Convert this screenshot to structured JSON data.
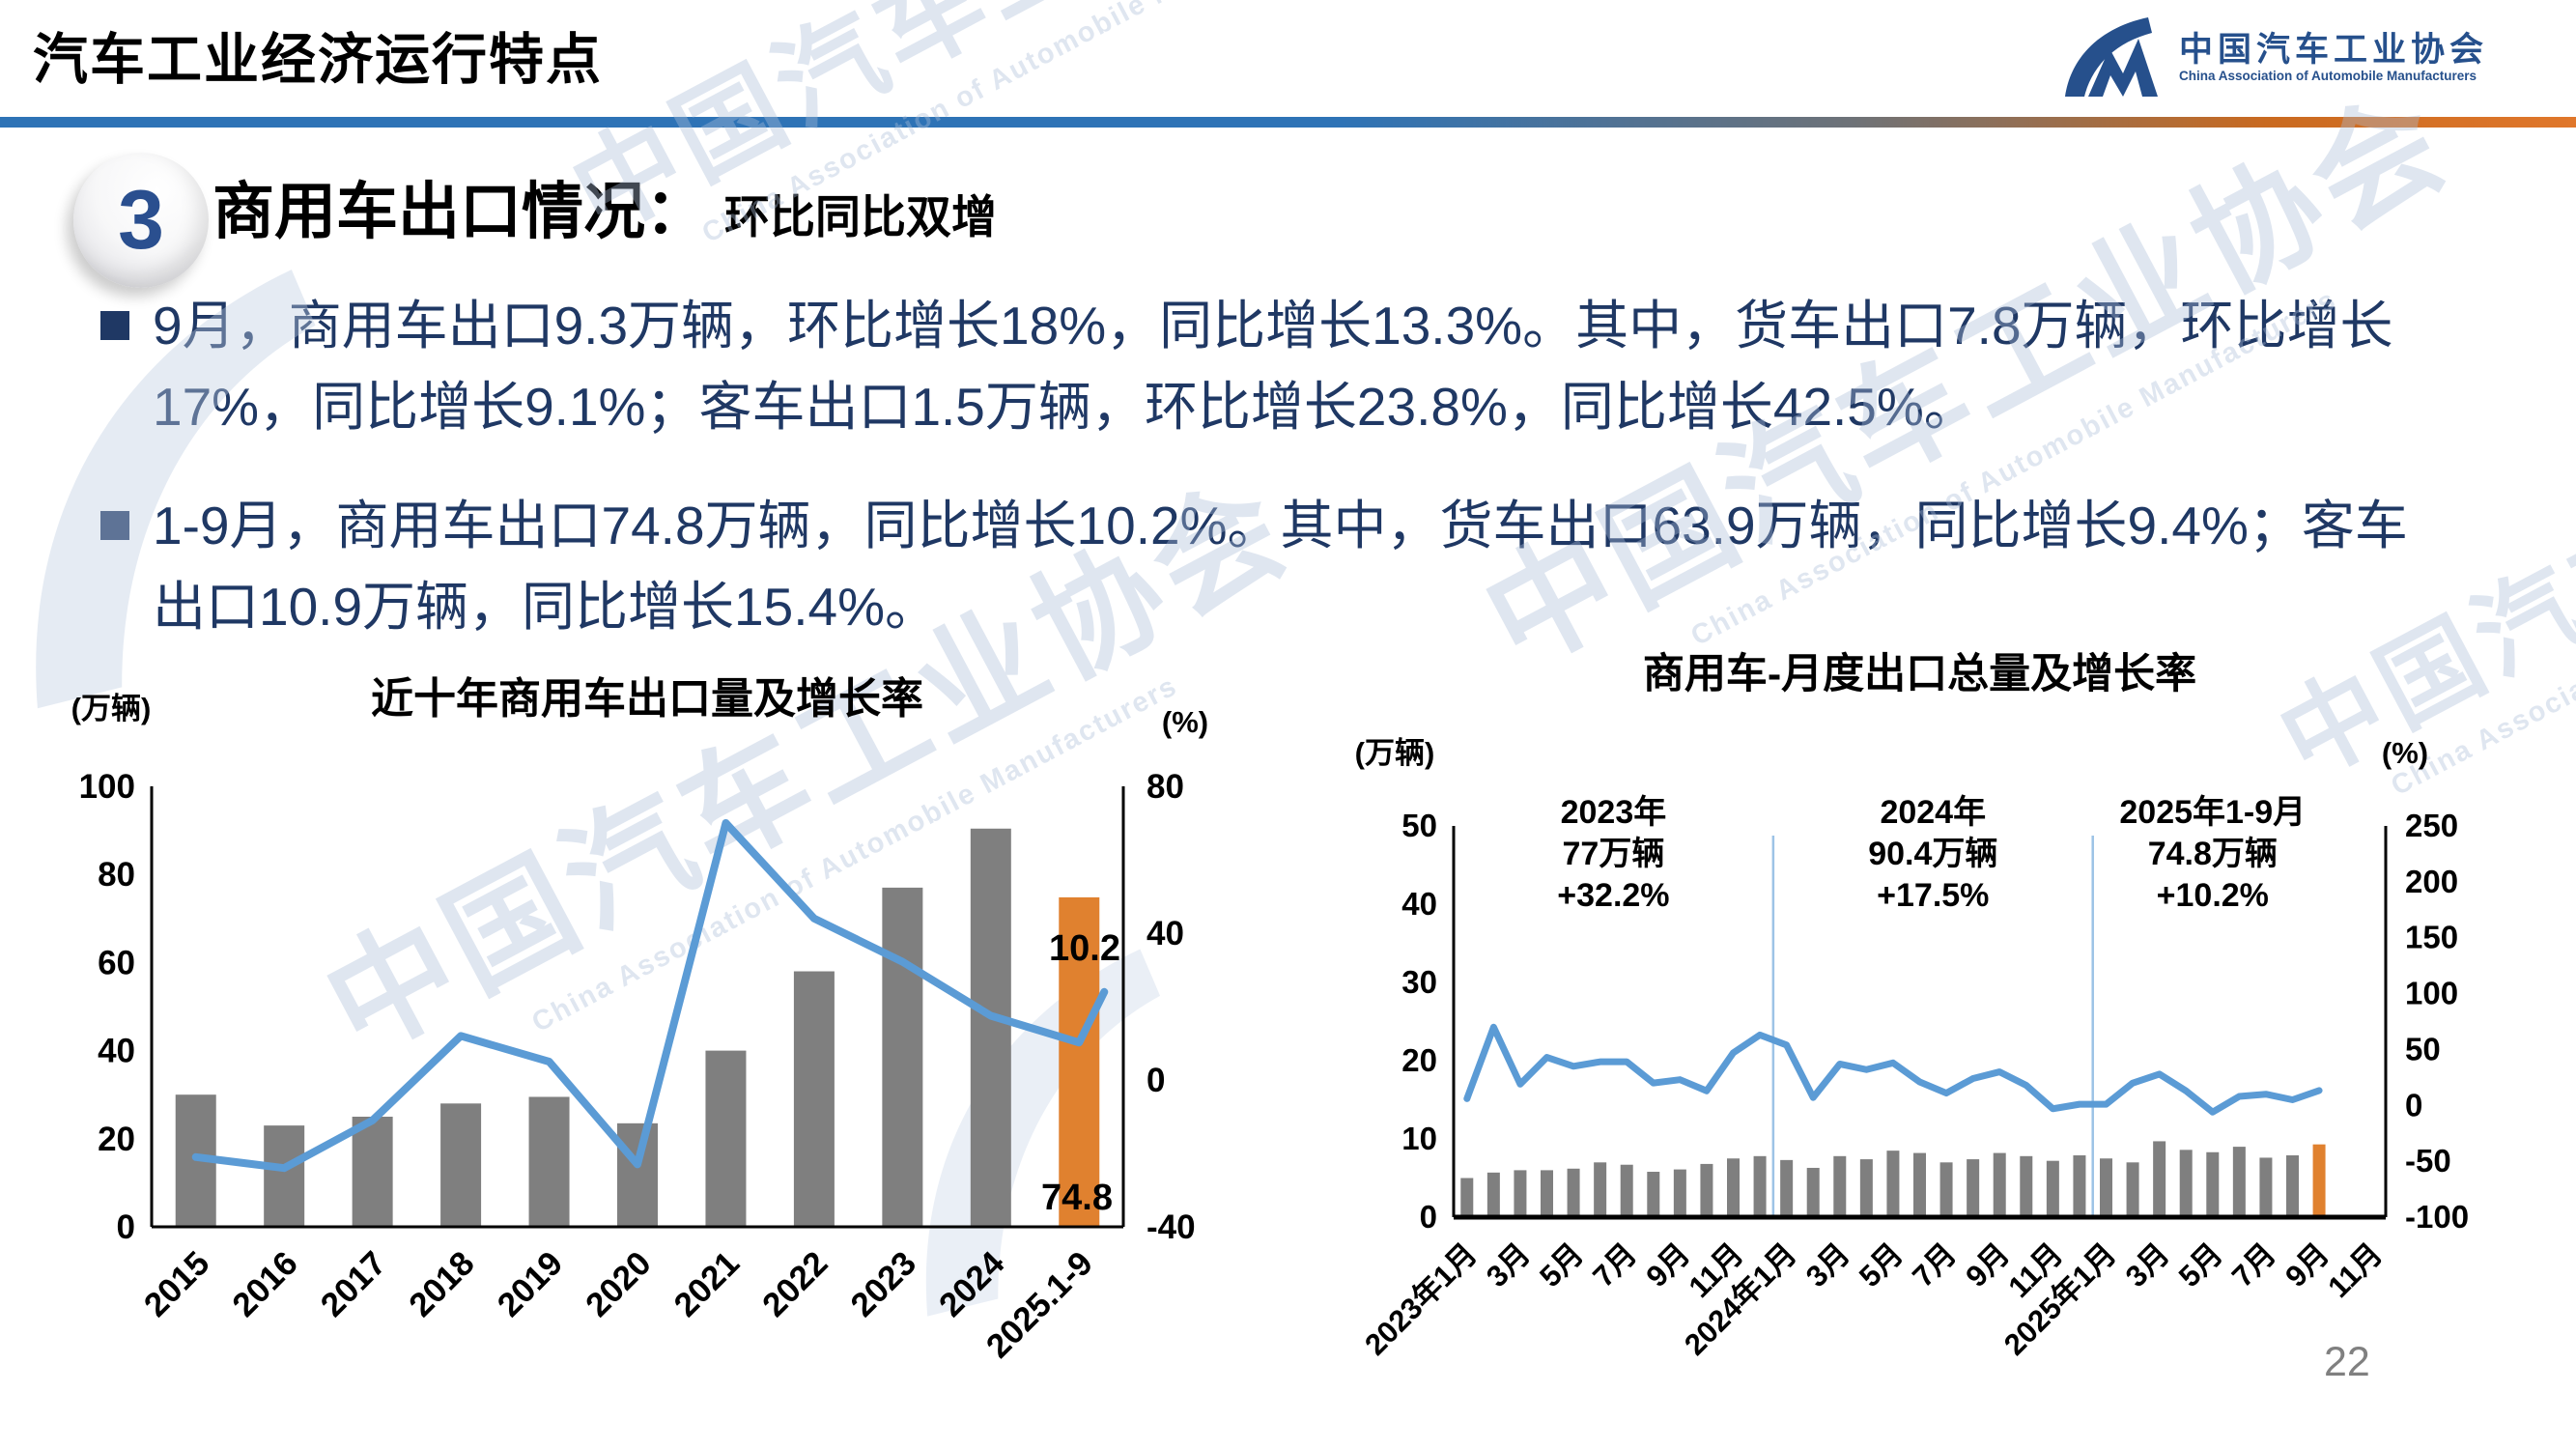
{
  "header": {
    "title": "汽车工业经济运行特点",
    "logo_cn": "中国汽车工业协会",
    "logo_en": "China Association of Automobile Manufacturers"
  },
  "section": {
    "number": "3",
    "title": "商用车出口情况：",
    "subtitle": "环比同比双增"
  },
  "bullets": {
    "b1": "9月，商用车出口9.3万辆，环比增长18%，同比增长13.3%。其中，货车出口7.8万辆，环比增长\n17%，同比增长9.1%；客车出口1.5万辆，环比增长23.8%，同比增长42.5%。",
    "b2": "1-9月，商用车出口74.8万辆，同比增长10.2%。其中，货车出口63.9万辆，同比增长9.4%；客车\n出口10.9万辆，同比增长15.4%。"
  },
  "watermark": {
    "cn": "中国汽车工业协会",
    "en": "China Association of Automobile Manufacturers"
  },
  "page_number": "22",
  "colors": {
    "bar": "#7F7F7F",
    "bar_highlight": "#E0812F",
    "line": "#5B9BD5",
    "separator": "#9DC3E6",
    "axis": "#000000",
    "text_navy": "#1F3864",
    "logo_blue": "#26508C",
    "page_gray": "#808080"
  },
  "chart_data": [
    {
      "type": "bar+line",
      "title": "近十年商用车出口量及增长率",
      "left_axis_unit": "(万辆)",
      "right_axis_unit": "(%)",
      "categories": [
        "2015",
        "2016",
        "2017",
        "2018",
        "2019",
        "2020",
        "2021",
        "2022",
        "2023",
        "2024",
        "2025.1-9"
      ],
      "series": [
        {
          "name": "出口量(万辆)",
          "type": "bar",
          "axis": "left",
          "values": [
            30,
            23,
            25,
            28,
            29.5,
            23.5,
            40,
            58,
            77,
            90.4,
            74.8
          ]
        },
        {
          "name": "增长率(%)",
          "type": "line",
          "axis": "right",
          "values": [
            -21,
            -24,
            -11,
            12,
            5,
            -23,
            70,
            44,
            32.2,
            17.5,
            10.2
          ]
        }
      ],
      "left_axis": {
        "min": 0,
        "max": 100,
        "step": 20
      },
      "right_axis": {
        "min": -40,
        "max": 80,
        "step": 40
      },
      "highlight_index": 10,
      "data_labels": {
        "line_end": "10.2",
        "bar_end": "74.8"
      },
      "legend_position": "none",
      "grid": false
    },
    {
      "type": "bar+line",
      "title": "商用车-月度出口总量及增长率",
      "left_axis_unit": "(万辆)",
      "right_axis_unit": "(%)",
      "n_slots": 35,
      "x_tick_labels": [
        "2023年1月",
        "3月",
        "5月",
        "7月",
        "9月",
        "11月",
        "2024年1月",
        "3月",
        "5月",
        "7月",
        "9月",
        "11月",
        "2025年1月",
        "3月",
        "5月",
        "7月",
        "9月",
        "11月"
      ],
      "series": [
        {
          "name": "出口量(万辆)",
          "type": "bar",
          "axis": "left",
          "values": [
            5.0,
            5.7,
            6.0,
            6.0,
            6.2,
            7.0,
            6.7,
            5.8,
            6.1,
            6.8,
            7.5,
            7.8,
            7.3,
            6.3,
            7.8,
            7.4,
            8.5,
            8.2,
            7.0,
            7.4,
            8.2,
            7.8,
            7.2,
            7.9,
            7.5,
            7.0,
            9.7,
            8.6,
            8.3,
            9.0,
            7.6,
            7.9,
            9.3
          ]
        },
        {
          "name": "增长率(%)",
          "type": "line",
          "axis": "right",
          "values": [
            6,
            70,
            19,
            43,
            35,
            39,
            39,
            20,
            23,
            13,
            47,
            63,
            54,
            7,
            37,
            32,
            38,
            21,
            11,
            24,
            30,
            18,
            -3,
            1,
            1,
            20,
            28,
            13,
            -6,
            8,
            10,
            5,
            13.3
          ]
        }
      ],
      "left_axis": {
        "min": 0,
        "max": 50,
        "step": 10
      },
      "right_axis": {
        "min": -100,
        "max": 250,
        "step": 50
      },
      "annotations": [
        [
          "2023年",
          "77万辆",
          "+32.2%"
        ],
        [
          "2024年",
          "90.4万辆",
          "+17.5%"
        ],
        [
          "2025年1-9月",
          "74.8万辆",
          "+10.2%"
        ]
      ],
      "year_separators_after": [
        11,
        23
      ],
      "highlight_index": 32,
      "legend_position": "none",
      "grid": false
    }
  ]
}
